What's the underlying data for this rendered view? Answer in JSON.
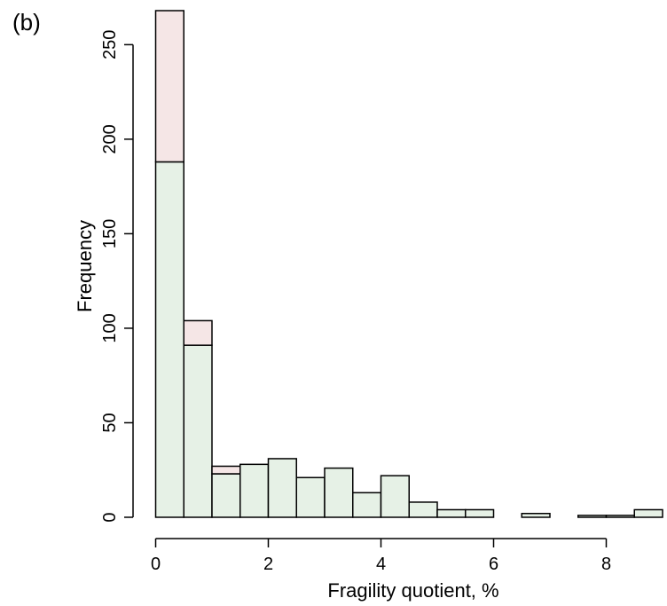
{
  "panel_label": "(b)",
  "chart_data": {
    "type": "bar",
    "subtype": "stacked-histogram",
    "xlabel": "Fragility quotient, %",
    "ylabel": "Frequency",
    "xlim": [
      0,
      9
    ],
    "ylim": [
      0,
      268
    ],
    "x_ticks": [
      0,
      2,
      4,
      6,
      8
    ],
    "y_ticks": [
      0,
      50,
      100,
      150,
      200,
      250
    ],
    "grid": false,
    "legend": "none",
    "bin_width": 0.5,
    "bin_starts": [
      0,
      0.5,
      1.0,
      1.5,
      2.0,
      2.5,
      3.0,
      3.5,
      4.0,
      4.5,
      5.0,
      5.5,
      6.0,
      6.5,
      7.0,
      7.5,
      8.0,
      8.5
    ],
    "series": [
      {
        "color": "#e6f1e6",
        "values": [
          188,
          91,
          23,
          28,
          31,
          21,
          26,
          13,
          22,
          8,
          4,
          4,
          0,
          2,
          0,
          1,
          1,
          4
        ]
      },
      {
        "color": "#f5e6e6",
        "values": [
          80,
          13,
          4,
          0,
          0,
          0,
          0,
          0,
          0,
          0,
          0,
          0,
          0,
          0,
          0,
          0,
          0,
          0
        ]
      }
    ]
  }
}
